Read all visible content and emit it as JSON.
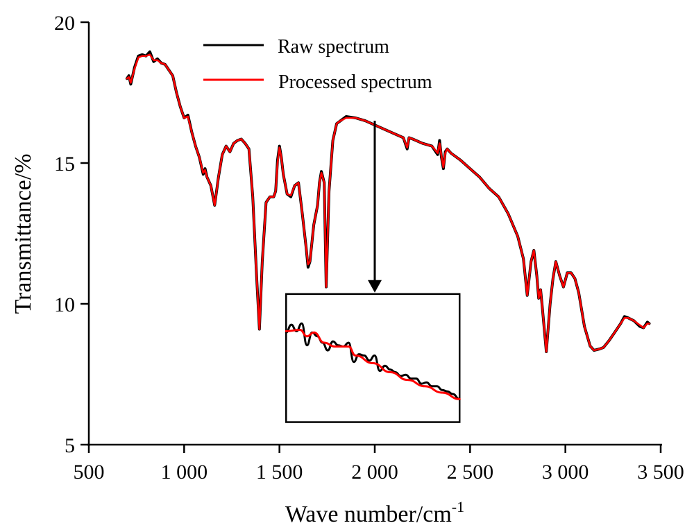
{
  "chart_data": {
    "type": "line",
    "title": "",
    "xlabel": "Wave number/cm",
    "xlabel_superscript": "-1",
    "ylabel": "Transmittance/%",
    "xlim": [
      500,
      3500
    ],
    "ylim": [
      5,
      20
    ],
    "xticks": [
      500,
      1000,
      1500,
      2000,
      2500,
      3000,
      3500
    ],
    "xtick_labels": [
      "500",
      "1 000",
      "1 500",
      "2 000",
      "2 500",
      "3 000",
      "3 500"
    ],
    "yticks": [
      5,
      10,
      15,
      20
    ],
    "ytick_labels": [
      "5",
      "10",
      "15",
      "20"
    ],
    "grid": false,
    "legend": {
      "position": "top-center"
    },
    "series": [
      {
        "name": "Raw spectrum",
        "color": "#000000",
        "x": [
          700,
          710,
          720,
          740,
          760,
          780,
          800,
          820,
          840,
          860,
          880,
          900,
          920,
          940,
          960,
          980,
          1000,
          1020,
          1040,
          1060,
          1080,
          1100,
          1110,
          1120,
          1140,
          1160,
          1180,
          1200,
          1220,
          1240,
          1260,
          1280,
          1300,
          1320,
          1340,
          1360,
          1380,
          1395,
          1410,
          1430,
          1450,
          1470,
          1480,
          1490,
          1500,
          1510,
          1520,
          1540,
          1560,
          1580,
          1600,
          1620,
          1640,
          1650,
          1660,
          1680,
          1700,
          1710,
          1720,
          1735,
          1745,
          1760,
          1780,
          1800,
          1820,
          1850,
          1900,
          1950,
          2000,
          2050,
          2100,
          2150,
          2170,
          2180,
          2200,
          2250,
          2300,
          2330,
          2340,
          2350,
          2360,
          2370,
          2380,
          2400,
          2450,
          2500,
          2550,
          2600,
          2650,
          2700,
          2750,
          2780,
          2800,
          2820,
          2835,
          2850,
          2860,
          2870,
          2880,
          2900,
          2920,
          2935,
          2950,
          2970,
          2990,
          3010,
          3030,
          3050,
          3070,
          3100,
          3130,
          3150,
          3180,
          3200,
          3230,
          3260,
          3290,
          3310,
          3330,
          3360,
          3390,
          3410,
          3430,
          3440
        ],
        "y": [
          18.0,
          18.1,
          17.8,
          18.4,
          18.8,
          18.85,
          18.8,
          18.95,
          18.6,
          18.7,
          18.55,
          18.5,
          18.3,
          18.1,
          17.5,
          17.0,
          16.6,
          16.7,
          16.1,
          15.6,
          15.2,
          14.6,
          14.8,
          14.5,
          14.2,
          13.5,
          14.5,
          15.3,
          15.6,
          15.4,
          15.7,
          15.8,
          15.85,
          15.7,
          15.5,
          13.8,
          11.0,
          9.1,
          11.5,
          13.6,
          13.8,
          13.8,
          14.0,
          15.1,
          15.6,
          15.2,
          14.6,
          13.9,
          13.8,
          14.2,
          14.3,
          13.2,
          12.0,
          11.3,
          11.5,
          12.8,
          13.5,
          14.3,
          14.7,
          14.3,
          10.6,
          14.0,
          15.8,
          16.4,
          16.5,
          16.65,
          16.6,
          16.5,
          16.35,
          16.2,
          16.05,
          15.9,
          15.5,
          15.9,
          15.85,
          15.7,
          15.6,
          15.3,
          15.8,
          15.2,
          14.8,
          15.4,
          15.5,
          15.35,
          15.1,
          14.8,
          14.5,
          14.1,
          13.8,
          13.2,
          12.4,
          11.6,
          10.3,
          11.5,
          11.9,
          11.0,
          10.2,
          10.5,
          9.8,
          8.3,
          10.0,
          10.9,
          11.5,
          11.0,
          10.6,
          11.1,
          11.1,
          10.9,
          10.4,
          9.2,
          8.5,
          8.35,
          8.4,
          8.45,
          8.7,
          9.0,
          9.3,
          9.55,
          9.5,
          9.4,
          9.2,
          9.15,
          9.35,
          9.3
        ]
      },
      {
        "name": "Processed spectrum",
        "color": "#ff0000",
        "x": [
          700,
          710,
          720,
          740,
          760,
          780,
          800,
          820,
          840,
          860,
          880,
          900,
          920,
          940,
          960,
          980,
          1000,
          1020,
          1040,
          1060,
          1080,
          1100,
          1110,
          1120,
          1140,
          1160,
          1180,
          1200,
          1220,
          1240,
          1260,
          1280,
          1300,
          1320,
          1340,
          1360,
          1380,
          1395,
          1410,
          1430,
          1450,
          1470,
          1480,
          1490,
          1500,
          1510,
          1520,
          1540,
          1560,
          1580,
          1600,
          1620,
          1640,
          1650,
          1660,
          1680,
          1700,
          1710,
          1720,
          1735,
          1745,
          1760,
          1780,
          1800,
          1820,
          1850,
          1900,
          1950,
          2000,
          2050,
          2100,
          2150,
          2170,
          2180,
          2200,
          2250,
          2300,
          2330,
          2340,
          2350,
          2360,
          2370,
          2380,
          2400,
          2450,
          2500,
          2550,
          2600,
          2650,
          2700,
          2750,
          2780,
          2800,
          2820,
          2835,
          2850,
          2860,
          2870,
          2880,
          2900,
          2920,
          2935,
          2950,
          2970,
          2990,
          3010,
          3030,
          3050,
          3070,
          3100,
          3130,
          3150,
          3180,
          3200,
          3230,
          3260,
          3290,
          3310,
          3330,
          3360,
          3390,
          3410,
          3430,
          3440
        ],
        "y": [
          18.0,
          18.05,
          17.85,
          18.35,
          18.75,
          18.8,
          18.8,
          18.85,
          18.65,
          18.65,
          18.55,
          18.5,
          18.3,
          18.1,
          17.5,
          17.0,
          16.6,
          16.65,
          16.1,
          15.6,
          15.2,
          14.65,
          14.75,
          14.5,
          14.2,
          13.5,
          14.5,
          15.3,
          15.6,
          15.4,
          15.7,
          15.8,
          15.85,
          15.7,
          15.5,
          13.8,
          11.0,
          9.1,
          11.5,
          13.6,
          13.8,
          13.8,
          14.0,
          15.0,
          15.55,
          15.2,
          14.6,
          13.9,
          13.85,
          14.2,
          14.3,
          13.2,
          12.0,
          11.4,
          11.5,
          12.8,
          13.5,
          14.3,
          14.65,
          14.3,
          10.6,
          14.0,
          15.8,
          16.4,
          16.5,
          16.6,
          16.6,
          16.5,
          16.35,
          16.2,
          16.05,
          15.9,
          15.55,
          15.9,
          15.85,
          15.7,
          15.6,
          15.35,
          15.7,
          15.25,
          14.85,
          15.35,
          15.5,
          15.35,
          15.1,
          14.8,
          14.5,
          14.1,
          13.8,
          13.2,
          12.4,
          11.6,
          10.3,
          11.5,
          11.9,
          11.0,
          10.2,
          10.5,
          9.8,
          8.3,
          10.0,
          10.9,
          11.5,
          11.0,
          10.6,
          11.1,
          11.1,
          10.9,
          10.4,
          9.2,
          8.5,
          8.35,
          8.4,
          8.45,
          8.7,
          9.0,
          9.3,
          9.5,
          9.5,
          9.4,
          9.25,
          9.15,
          9.3,
          9.3
        ]
      }
    ],
    "annotations": [
      {
        "type": "arrow",
        "from": [
          2000,
          16.7
        ],
        "to": [
          2000,
          10.4
        ],
        "description": "arrow pointing to inset magnifying region near 2000 cm-1"
      },
      {
        "type": "inset",
        "description": "Zoomed detail: raw spectrum oscillates around the smooth processed spectrum",
        "inset_x_range_data": [
          1535,
          2445
        ],
        "inset_y_range_data": [
          5.8,
          10.35
        ],
        "series": [
          {
            "name": "Raw spectrum (zoom)",
            "color": "#000000",
            "t": [
              0,
              0.03,
              0.06,
              0.09,
              0.12,
              0.15,
              0.18,
              0.21,
              0.24,
              0.27,
              0.3,
              0.33,
              0.36,
              0.39,
              0.42,
              0.45,
              0.48,
              0.51,
              0.54,
              0.57,
              0.6,
              0.63,
              0.66,
              0.69,
              0.72,
              0.75,
              0.78,
              0.81,
              0.84,
              0.87,
              0.9,
              0.93,
              0.96,
              1.0
            ],
            "v": [
              0.7,
              0.76,
              0.71,
              0.77,
              0.6,
              0.7,
              0.67,
              0.62,
              0.56,
              0.63,
              0.6,
              0.59,
              0.62,
              0.47,
              0.53,
              0.52,
              0.48,
              0.52,
              0.4,
              0.44,
              0.41,
              0.39,
              0.36,
              0.37,
              0.34,
              0.34,
              0.3,
              0.31,
              0.28,
              0.28,
              0.25,
              0.24,
              0.22,
              0.18
            ]
          },
          {
            "name": "Processed spectrum (zoom)",
            "color": "#ff0000",
            "t": [
              0,
              0.08,
              0.12,
              0.16,
              0.22,
              0.28,
              0.36,
              0.4,
              0.5,
              0.6,
              0.7,
              0.8,
              0.9,
              1.0
            ],
            "v": [
              0.71,
              0.72,
              0.67,
              0.7,
              0.62,
              0.59,
              0.59,
              0.52,
              0.46,
              0.39,
              0.33,
              0.28,
              0.23,
              0.18
            ]
          }
        ]
      }
    ]
  }
}
